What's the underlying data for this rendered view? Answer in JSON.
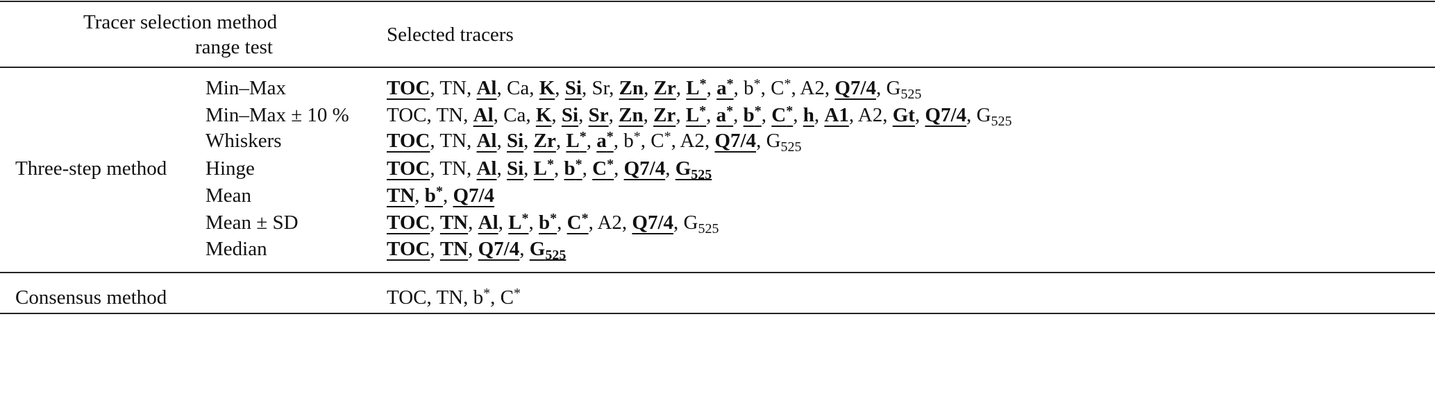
{
  "header": {
    "col1_line1": "Tracer selection method",
    "col1_line2": "range test",
    "col3": "Selected tracers"
  },
  "groups": [
    {
      "method": "Three-step method",
      "rows": [
        {
          "test": "Min–Max",
          "tracers": [
            {
              "name": "TOC",
              "hl": true
            },
            {
              "name": "TN",
              "hl": false
            },
            {
              "name": "Al",
              "hl": true
            },
            {
              "name": "Ca",
              "hl": false
            },
            {
              "name": "K",
              "hl": true
            },
            {
              "name": "Si",
              "hl": true
            },
            {
              "name": "Sr",
              "hl": false
            },
            {
              "name": "Zn",
              "hl": true
            },
            {
              "name": "Zr",
              "hl": true
            },
            {
              "name": "L",
              "sup": "*",
              "hl": true
            },
            {
              "name": "a",
              "sup": "*",
              "hl": true
            },
            {
              "name": "b",
              "sup": "*",
              "hl": false
            },
            {
              "name": "C",
              "sup": "*",
              "hl": false
            },
            {
              "name": "A2",
              "hl": false
            },
            {
              "name": "Q7/4",
              "hl": true
            },
            {
              "name": "G",
              "sub": "525",
              "hl": false
            }
          ]
        },
        {
          "test": "Min–Max ± 10 %",
          "tracers": [
            {
              "name": "TOC",
              "hl": false
            },
            {
              "name": "TN",
              "hl": false
            },
            {
              "name": "Al",
              "hl": true
            },
            {
              "name": "Ca",
              "hl": false
            },
            {
              "name": "K",
              "hl": true
            },
            {
              "name": "Si",
              "hl": true
            },
            {
              "name": "Sr",
              "hl": true
            },
            {
              "name": "Zn",
              "hl": true
            },
            {
              "name": "Zr",
              "hl": true
            },
            {
              "name": "L",
              "sup": "*",
              "hl": true
            },
            {
              "name": "a",
              "sup": "*",
              "hl": true
            },
            {
              "name": "b",
              "sup": "*",
              "hl": true
            },
            {
              "name": "C",
              "sup": "*",
              "hl": true
            },
            {
              "name": "h",
              "hl": true
            },
            {
              "name": "A1",
              "hl": true
            },
            {
              "name": "A2",
              "hl": false
            },
            {
              "name": "Gt",
              "hl": true
            },
            {
              "name": "Q7/4",
              "hl": true
            },
            {
              "name": "G",
              "sub": "525",
              "hl": false
            }
          ]
        },
        {
          "test": "Whiskers",
          "tracers": [
            {
              "name": "TOC",
              "hl": true
            },
            {
              "name": "TN",
              "hl": false
            },
            {
              "name": "Al",
              "hl": true
            },
            {
              "name": "Si",
              "hl": true
            },
            {
              "name": "Zr",
              "hl": true
            },
            {
              "name": "L",
              "sup": "*",
              "hl": true
            },
            {
              "name": "a",
              "sup": "*",
              "hl": true
            },
            {
              "name": "b",
              "sup": "*",
              "hl": false
            },
            {
              "name": "C",
              "sup": "*",
              "hl": false
            },
            {
              "name": "A2",
              "hl": false
            },
            {
              "name": "Q7/4",
              "hl": true
            },
            {
              "name": "G",
              "sub": "525",
              "hl": false
            }
          ]
        },
        {
          "test": "Hinge",
          "tracers": [
            {
              "name": "TOC",
              "hl": true
            },
            {
              "name": "TN",
              "hl": false
            },
            {
              "name": "Al",
              "hl": true
            },
            {
              "name": "Si",
              "hl": true
            },
            {
              "name": "L",
              "sup": "*",
              "hl": true
            },
            {
              "name": "b",
              "sup": "*",
              "hl": true
            },
            {
              "name": "C",
              "sup": "*",
              "hl": true
            },
            {
              "name": "Q7/4",
              "hl": true
            },
            {
              "name": "G",
              "sub": "525",
              "hl": true
            }
          ]
        },
        {
          "test": "Mean",
          "tracers": [
            {
              "name": "TN",
              "hl": true
            },
            {
              "name": "b",
              "sup": "*",
              "hl": true
            },
            {
              "name": "Q7/4",
              "hl": true
            }
          ]
        },
        {
          "test": "Mean ± SD",
          "tracers": [
            {
              "name": "TOC",
              "hl": true
            },
            {
              "name": "TN",
              "hl": true
            },
            {
              "name": "Al",
              "hl": true
            },
            {
              "name": "L",
              "sup": "*",
              "hl": true
            },
            {
              "name": "b",
              "sup": "*",
              "hl": true
            },
            {
              "name": "C",
              "sup": "*",
              "hl": true
            },
            {
              "name": "A2",
              "hl": false
            },
            {
              "name": "Q7/4",
              "hl": true
            },
            {
              "name": "G",
              "sub": "525",
              "hl": false
            }
          ]
        },
        {
          "test": "Median",
          "tracers": [
            {
              "name": "TOC",
              "hl": true
            },
            {
              "name": "TN",
              "hl": true
            },
            {
              "name": "Q7/4",
              "hl": true
            },
            {
              "name": "G",
              "sub": "525",
              "hl": true
            }
          ]
        }
      ]
    },
    {
      "method": "Consensus method",
      "rows": [
        {
          "test": "",
          "tracers": [
            {
              "name": "TOC",
              "hl": false
            },
            {
              "name": "TN",
              "hl": false
            },
            {
              "name": "b",
              "sup": "*",
              "hl": false
            },
            {
              "name": "C",
              "sup": "*",
              "hl": false
            }
          ]
        }
      ]
    }
  ]
}
